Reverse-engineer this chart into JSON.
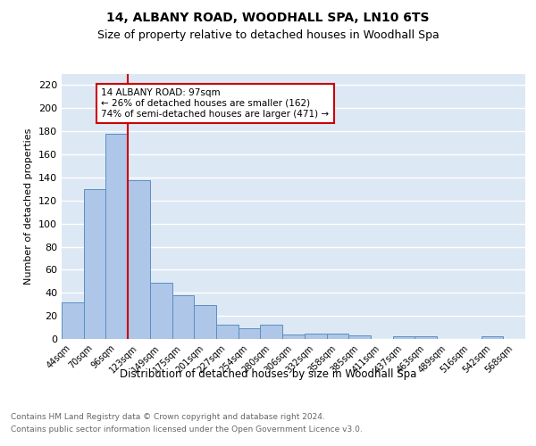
{
  "title1": "14, ALBANY ROAD, WOODHALL SPA, LN10 6TS",
  "title2": "Size of property relative to detached houses in Woodhall Spa",
  "xlabel": "Distribution of detached houses by size in Woodhall Spa",
  "ylabel": "Number of detached properties",
  "categories": [
    "44sqm",
    "70sqm",
    "96sqm",
    "123sqm",
    "149sqm",
    "175sqm",
    "201sqm",
    "227sqm",
    "254sqm",
    "280sqm",
    "306sqm",
    "332sqm",
    "358sqm",
    "385sqm",
    "411sqm",
    "437sqm",
    "463sqm",
    "489sqm",
    "516sqm",
    "542sqm",
    "568sqm"
  ],
  "values": [
    32,
    130,
    178,
    138,
    49,
    38,
    29,
    12,
    9,
    12,
    4,
    5,
    5,
    3,
    0,
    2,
    2,
    0,
    0,
    2,
    0
  ],
  "bar_color": "#aec6e8",
  "bar_edge_color": "#5a8fc2",
  "background_color": "#dde8f5",
  "grid_color": "#ffffff",
  "vline_color": "#cc0000",
  "annotation_text": "14 ALBANY ROAD: 97sqm\n← 26% of detached houses are smaller (162)\n74% of semi-detached houses are larger (471) →",
  "annotation_box_color": "#ffffff",
  "annotation_box_edge": "#cc0000",
  "footer1": "Contains HM Land Registry data © Crown copyright and database right 2024.",
  "footer2": "Contains public sector information licensed under the Open Government Licence v3.0.",
  "ylim": [
    0,
    230
  ],
  "yticks": [
    0,
    20,
    40,
    60,
    80,
    100,
    120,
    140,
    160,
    180,
    200,
    220
  ]
}
